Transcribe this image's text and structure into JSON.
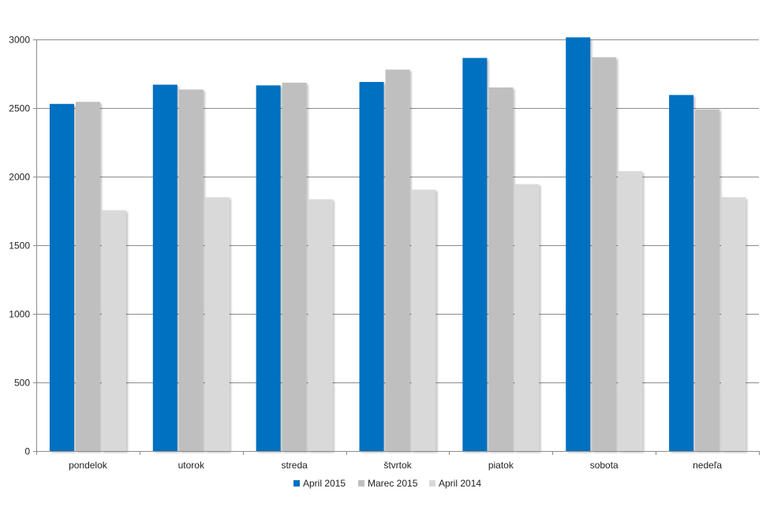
{
  "chart_data": {
    "type": "bar",
    "title": "",
    "xlabel": "",
    "ylabel": "",
    "categories": [
      "pondelok",
      "utorok",
      "streda",
      "štvrtok",
      "piatok",
      "sobota",
      "nedeľa"
    ],
    "series": [
      {
        "name": "April 2015",
        "color": "#0070C0",
        "values": [
          2530,
          2670,
          2665,
          2690,
          2865,
          3015,
          2595
        ]
      },
      {
        "name": "Marec 2015",
        "color": "#BFBFBF",
        "values": [
          2545,
          2635,
          2685,
          2780,
          2650,
          2870,
          2490
        ]
      },
      {
        "name": "April 2014",
        "color": "#D9D9D9",
        "values": [
          1755,
          1850,
          1835,
          1905,
          1945,
          2040,
          1850
        ]
      }
    ],
    "ylim": [
      0,
      3000
    ],
    "yticks": [
      "0",
      "500",
      "1000",
      "1500",
      "2000",
      "2500",
      "3000"
    ],
    "grid": true,
    "legend": "bottom"
  }
}
